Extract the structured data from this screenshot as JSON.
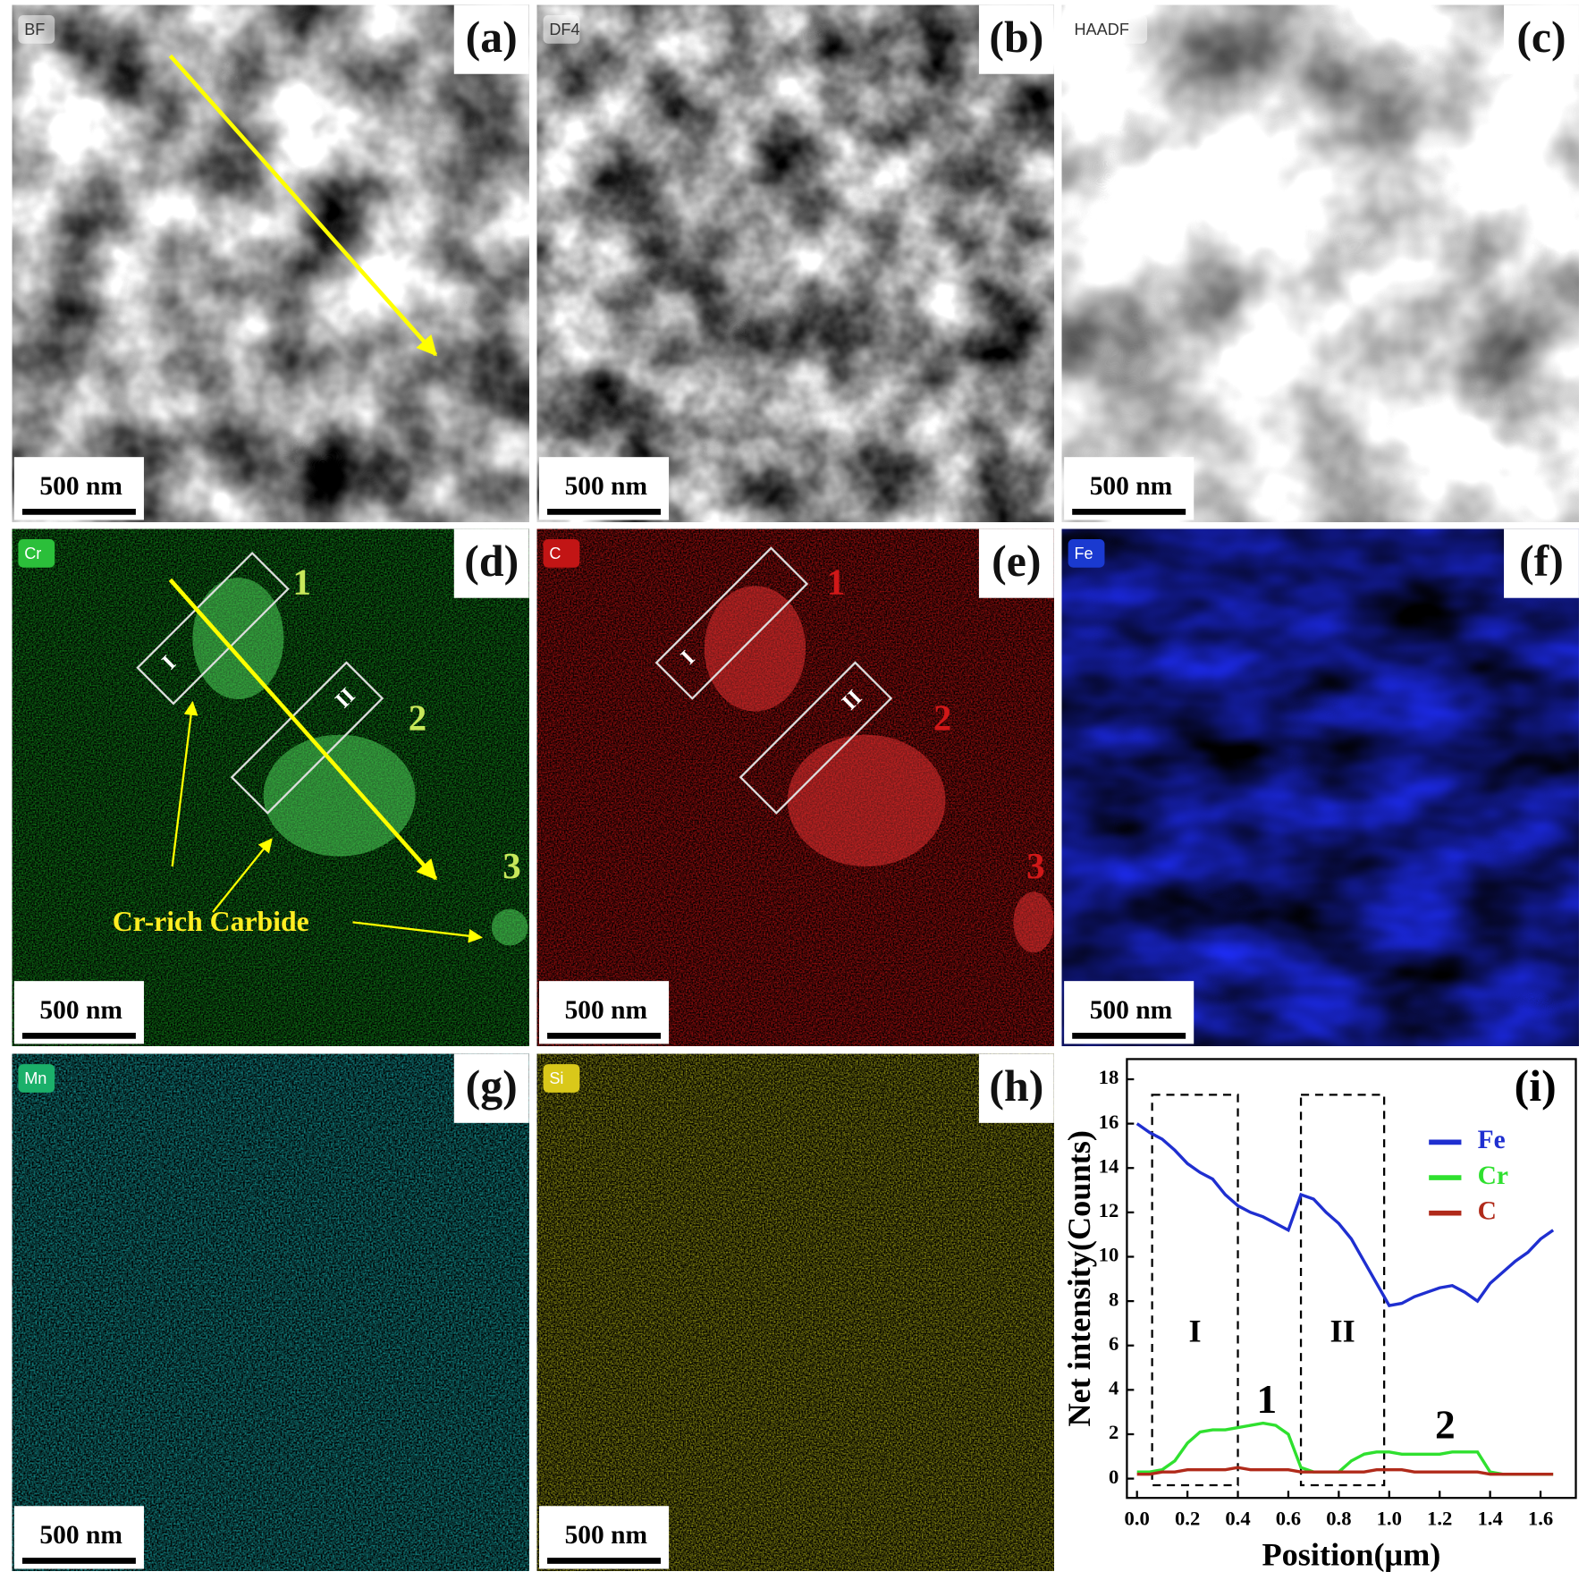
{
  "panels": [
    {
      "label": "(a)",
      "tag": "BF",
      "scale_bar": "500 nm"
    },
    {
      "label": "(b)",
      "tag": "DF4",
      "scale_bar": "500 nm"
    },
    {
      "label": "(c)",
      "tag": "HAADF",
      "scale_bar": "500 nm"
    },
    {
      "label": "(d)",
      "tag": "Cr",
      "scale_bar": "500 nm",
      "annotations": [
        "1",
        "2",
        "3",
        "I",
        "II",
        "Cr-rich Carbide"
      ]
    },
    {
      "label": "(e)",
      "tag": "C",
      "scale_bar": "500 nm",
      "annotations": [
        "1",
        "2",
        "3",
        "I",
        "II"
      ]
    },
    {
      "label": "(f)",
      "tag": "Fe",
      "scale_bar": "500 nm"
    },
    {
      "label": "(g)",
      "tag": "Mn",
      "scale_bar": "500 nm"
    },
    {
      "label": "(h)",
      "tag": "Si",
      "scale_bar": "500 nm"
    }
  ],
  "chart_data": {
    "type": "line",
    "label": "(i)",
    "x_label": "Position(μm)",
    "y_label": "Net intensity(Counts)",
    "x": [
      0,
      0.05,
      0.1,
      0.15,
      0.2,
      0.25,
      0.3,
      0.35,
      0.4,
      0.45,
      0.5,
      0.55,
      0.6,
      0.65,
      0.7,
      0.75,
      0.8,
      0.85,
      0.9,
      0.95,
      1.0,
      1.05,
      1.1,
      1.15,
      1.2,
      1.25,
      1.3,
      1.35,
      1.4,
      1.45,
      1.5,
      1.55,
      1.6,
      1.65
    ],
    "series": [
      {
        "name": "Fe",
        "color": "#1f2fd0",
        "values": [
          16,
          15.6,
          15.3,
          14.8,
          14.2,
          13.8,
          13.5,
          12.8,
          12.3,
          12.0,
          11.8,
          11.5,
          11.2,
          12.8,
          12.6,
          12.0,
          11.5,
          10.8,
          9.8,
          8.8,
          7.8,
          7.9,
          8.2,
          8.4,
          8.6,
          8.7,
          8.4,
          8.0,
          8.8,
          9.3,
          9.8,
          10.2,
          10.8,
          11.2
        ]
      },
      {
        "name": "Cr",
        "color": "#2fe02f",
        "values": [
          0.3,
          0.3,
          0.4,
          0.8,
          1.6,
          2.1,
          2.2,
          2.2,
          2.3,
          2.4,
          2.5,
          2.4,
          2.0,
          0.5,
          0.3,
          0.3,
          0.3,
          0.8,
          1.1,
          1.2,
          1.2,
          1.1,
          1.1,
          1.1,
          1.1,
          1.2,
          1.2,
          1.2,
          0.3,
          0.2,
          0.2,
          0.2,
          0.2,
          0.2
        ]
      },
      {
        "name": "C",
        "color": "#b02a1a",
        "values": [
          0.2,
          0.2,
          0.3,
          0.3,
          0.4,
          0.4,
          0.4,
          0.4,
          0.5,
          0.4,
          0.4,
          0.4,
          0.4,
          0.3,
          0.3,
          0.3,
          0.3,
          0.3,
          0.3,
          0.4,
          0.4,
          0.4,
          0.3,
          0.3,
          0.3,
          0.3,
          0.3,
          0.3,
          0.2,
          0.2,
          0.2,
          0.2,
          0.2,
          0.2
        ]
      }
    ],
    "regions": [
      {
        "label": "I",
        "x": [
          0.06,
          0.4
        ],
        "y": [
          -0.3,
          17.3
        ]
      },
      {
        "label": "II",
        "x": [
          0.65,
          0.98
        ],
        "y": [
          -0.3,
          17.3
        ]
      }
    ],
    "annotations": [
      "1",
      "2"
    ],
    "xlim": [
      -0.04,
      1.74
    ],
    "ylim": [
      -0.87,
      18.91
    ],
    "xticks": [
      {
        "value": 0,
        "label": "0.0"
      },
      0.2,
      0.4,
      0.6,
      0.8,
      {
        "value": 1,
        "label": "1.0"
      },
      1.2,
      1.4,
      1.6
    ],
    "yticks": [
      0,
      2,
      4,
      6,
      8,
      10,
      12,
      14,
      16,
      18
    ],
    "legend": "upper right"
  }
}
